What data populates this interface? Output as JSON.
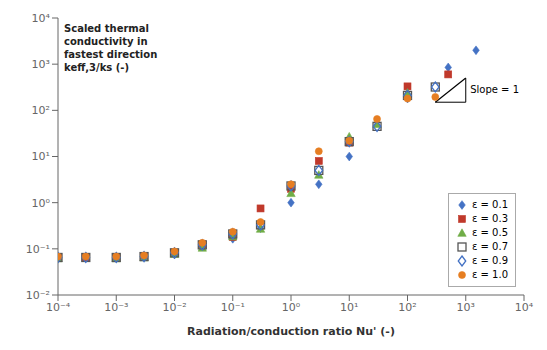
{
  "chart_data": {
    "type": "scatter",
    "xlabel": "Radiation/conduction ratio Nu' (-)",
    "ylabel": "Scaled thermal\nconductivity in\nfastest direction\nkeff,3/ks (-)",
    "log": true,
    "grid": false,
    "legend": "lower right",
    "xlim": [
      0.0001,
      10000
    ],
    "ylim": [
      0.01,
      10000
    ],
    "xticks": [
      {
        "value": 0.0001,
        "label": "10⁻⁴"
      },
      {
        "value": 0.001,
        "label": "10⁻³"
      },
      {
        "value": 0.01,
        "label": "10⁻²"
      },
      {
        "value": 0.1,
        "label": "10⁻¹"
      },
      {
        "value": 1,
        "label": "10⁰"
      },
      {
        "value": 10,
        "label": "10¹"
      },
      {
        "value": 100,
        "label": "10²"
      },
      {
        "value": 1000,
        "label": "10³"
      },
      {
        "value": 10000,
        "label": "10⁴"
      }
    ],
    "yticks": [
      {
        "value": 0.01,
        "label": "10⁻²"
      },
      {
        "value": 0.1,
        "label": "10⁻¹"
      },
      {
        "value": 1,
        "label": "10⁰"
      },
      {
        "value": 10,
        "label": "10¹"
      },
      {
        "value": 100,
        "label": "10²"
      },
      {
        "value": 1000,
        "label": "10³"
      },
      {
        "value": 10000,
        "label": "10⁴"
      }
    ],
    "series": [
      {
        "name": "ε = 0.1",
        "color": "#4472C4",
        "marker": "diamond",
        "x": [
          0.0001,
          0.0003,
          0.001,
          0.003,
          0.01,
          0.03,
          0.1,
          0.3,
          1.0,
          3.0,
          10,
          100,
          500,
          1500
        ],
        "y": [
          0.065,
          0.065,
          0.065,
          0.068,
          0.075,
          0.12,
          0.165,
          0.28,
          1.0,
          2.5,
          10,
          180,
          850,
          2000
        ]
      },
      {
        "name": "ε = 0.3",
        "color": "#C0392B",
        "marker": "square",
        "x": [
          0.0001,
          0.0003,
          0.001,
          0.003,
          0.01,
          0.03,
          0.1,
          0.3,
          1.0,
          3.0,
          10,
          100,
          500
        ],
        "y": [
          0.065,
          0.065,
          0.065,
          0.068,
          0.082,
          0.125,
          0.18,
          0.75,
          2.0,
          8.0,
          20,
          330,
          600
        ]
      },
      {
        "name": "ε = 0.5",
        "color": "#70AD47",
        "marker": "triangle",
        "x": [
          0.0001,
          0.001,
          0.003,
          0.01,
          0.03,
          0.1,
          0.3,
          1.0,
          3.0,
          10,
          30,
          100
        ],
        "y": [
          0.062,
          0.062,
          0.065,
          0.077,
          0.105,
          0.185,
          0.27,
          1.6,
          4.0,
          27,
          50,
          240
        ]
      },
      {
        "name": "ε = 0.7",
        "color": "#555555",
        "marker": "square_open",
        "x": [
          0.0001,
          0.0003,
          0.001,
          0.003,
          0.01,
          0.03,
          0.1,
          0.3,
          1.0,
          3.0,
          10,
          30,
          100,
          300
        ],
        "y": [
          0.065,
          0.065,
          0.065,
          0.068,
          0.082,
          0.122,
          0.21,
          0.33,
          2.3,
          5.0,
          21,
          45,
          210,
          320
        ]
      },
      {
        "name": "ε = 0.9",
        "color": "#4472C4",
        "marker": "diamond_open",
        "x": [
          0.0001,
          0.0003,
          0.001,
          0.003,
          0.01,
          0.03,
          0.1,
          0.3,
          1.0,
          3.0,
          10,
          30,
          100,
          300
        ],
        "y": [
          0.065,
          0.065,
          0.065,
          0.068,
          0.082,
          0.122,
          0.21,
          0.33,
          2.3,
          5.0,
          21,
          45,
          210,
          320
        ]
      },
      {
        "name": "ε = 1.0",
        "color": "#E67E22",
        "marker": "circle",
        "x": [
          0.0001,
          0.0003,
          0.001,
          0.003,
          0.01,
          0.03,
          0.1,
          0.3,
          1.0,
          3.0,
          10,
          30,
          100,
          300
        ],
        "y": [
          0.068,
          0.068,
          0.068,
          0.072,
          0.088,
          0.135,
          0.235,
          0.38,
          2.5,
          13,
          22,
          65,
          180,
          195
        ]
      }
    ],
    "slope_triangle": {
      "x": [
        300,
        1000,
        1000
      ],
      "y": [
        150,
        150,
        500
      ]
    },
    "annotations": [
      {
        "text": "Slope = 1",
        "x": 1100,
        "y": 280
      }
    ]
  }
}
